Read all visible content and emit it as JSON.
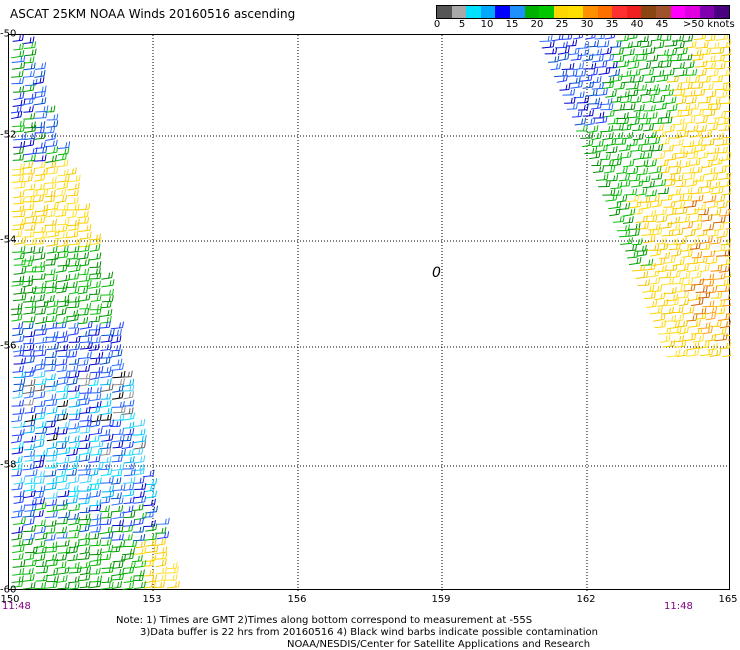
{
  "title": "ASCAT 25KM NOAA Winds 20160516 ascending",
  "colorbar": {
    "colors": [
      "#555555",
      "#a9a9a9",
      "#00e0ff",
      "#00a8ff",
      "#0000ff",
      "#1e90ff",
      "#00b000",
      "#00c800",
      "#ffd700",
      "#ffe000",
      "#ff9000",
      "#ff7000",
      "#ff3030",
      "#ee2020",
      "#8b4513",
      "#a0522d",
      "#ff00ff",
      "#e000e0",
      "#8000b0",
      "#4b0082"
    ],
    "labels": [
      "0",
      "5",
      "10",
      "15",
      "20",
      "25",
      "30",
      "35",
      "40",
      "45",
      ">50 knots"
    ]
  },
  "y_labels": [
    "-50",
    "-52",
    "-54",
    "-56",
    "-58",
    "-60"
  ],
  "x_labels": [
    "150",
    "153",
    "156",
    "159",
    "162",
    "165"
  ],
  "time_left": "11:48",
  "time_right": "11:48",
  "notes": [
    "Note: 1) Times are GMT 2)Times along bottom correspond to measurement at -55S",
    "3)Data buffer is 22 hrs from 20160516 4) Black wind barbs indicate possible contamination",
    "NOAA/NESDIS/Center for Satellite Applications and Research"
  ],
  "marker": "0"
}
